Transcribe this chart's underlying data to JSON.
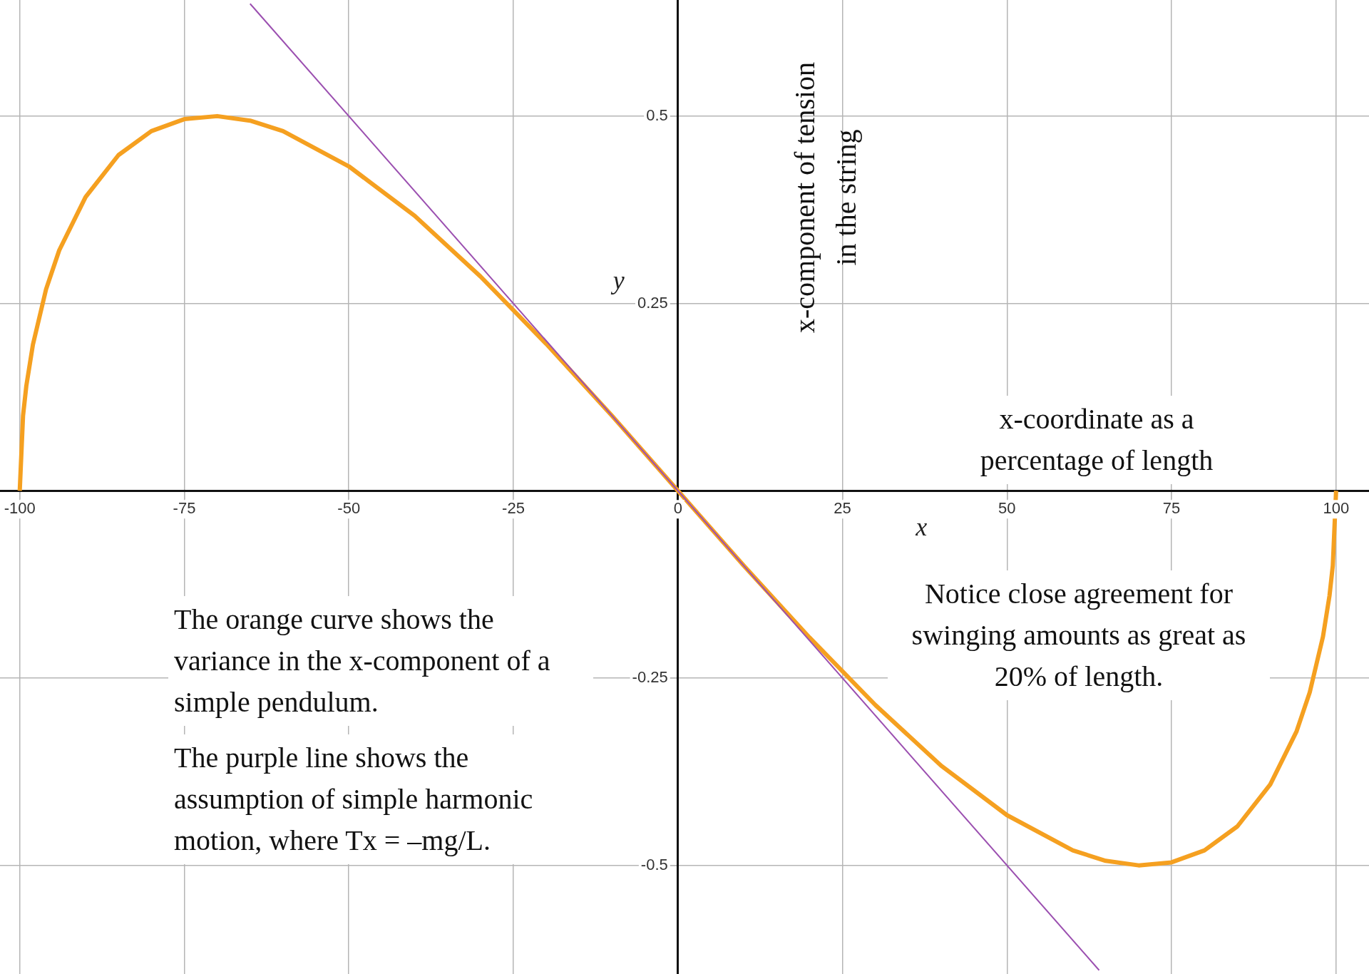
{
  "chart_data": {
    "type": "line",
    "xlabel": "x",
    "ylabel": "y",
    "annotations": [
      "x-component of tension in the string",
      "x-coordinate as a percentage of length",
      "Notice close agreement for swinging amounts as great as 20% of length.",
      "The orange curve shows the variance in the x-component of a simple pendulum.",
      "The purple line shows the assumption of simple harmonic motion, where Tx = –mg/L."
    ],
    "series": [
      {
        "color": "#f5a020",
        "x": [
          -100,
          -99.5,
          -99,
          -98,
          -96,
          -94,
          -90,
          -85,
          -80,
          -75,
          -70,
          -65,
          -60,
          -50,
          -40,
          -30,
          -20,
          -10,
          0,
          10,
          20,
          30,
          40,
          50,
          60,
          65,
          70,
          75,
          80,
          85,
          90,
          94,
          96,
          98,
          99,
          99.5,
          100
        ],
        "values": [
          0,
          0.1,
          0.14,
          0.195,
          0.269,
          0.321,
          0.392,
          0.448,
          0.48,
          0.496,
          0.5,
          0.494,
          0.48,
          0.433,
          0.367,
          0.286,
          0.196,
          0.1,
          0,
          -0.1,
          -0.196,
          -0.286,
          -0.367,
          -0.433,
          -0.48,
          -0.494,
          -0.5,
          -0.496,
          -0.48,
          -0.448,
          -0.392,
          -0.321,
          -0.269,
          -0.195,
          -0.14,
          -0.1,
          0
        ]
      },
      {
        "color": "#9b4fb0",
        "x": [
          -65,
          64
        ],
        "values": [
          0.65,
          -0.64
        ]
      }
    ],
    "xlim": [
      -103,
      105
    ],
    "ylim": [
      -0.645,
      0.655
    ],
    "xticks": [
      -100,
      -75,
      -50,
      -25,
      0,
      25,
      50,
      75,
      100
    ],
    "yticks": [
      -0.5,
      -0.25,
      0.25,
      0.5
    ],
    "grid": true,
    "legend": false,
    "marker": "none",
    "line_style": "solid"
  }
}
